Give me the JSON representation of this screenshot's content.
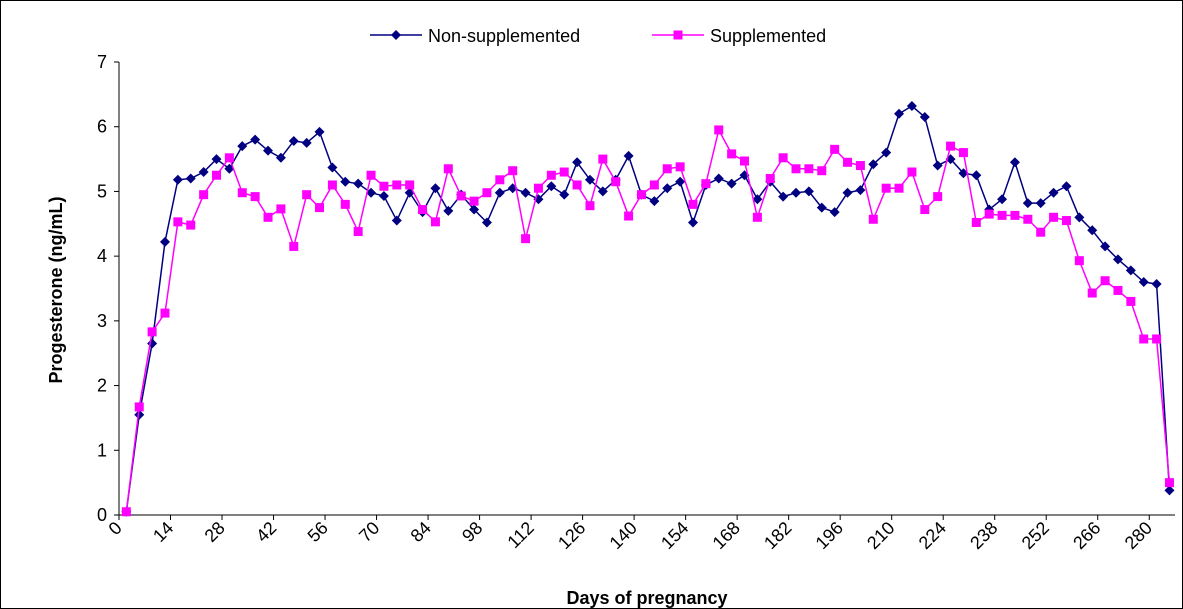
{
  "chart_data": {
    "type": "line",
    "x_label": "Days of pregnancy",
    "y_label": "Progesterone (ng/mL)",
    "x": [
      2,
      5.5,
      9,
      12.5,
      16,
      19.5,
      23,
      26.5,
      30,
      33.5,
      37,
      40.5,
      44,
      47.5,
      51,
      54.5,
      58,
      61.5,
      65,
      68.5,
      72,
      75.5,
      79,
      82.5,
      86,
      89.5,
      93,
      96.5,
      100,
      103.5,
      107,
      110.5,
      114,
      117.5,
      121,
      124.5,
      128,
      131.5,
      135,
      138.5,
      142,
      145.5,
      149,
      152.5,
      156,
      159.5,
      163,
      166.5,
      170,
      173.5,
      177,
      180.5,
      184,
      187.5,
      191,
      194.5,
      198,
      201.5,
      205,
      208.5,
      212,
      215.5,
      219,
      222.5,
      226,
      229.5,
      233,
      236.5,
      240,
      243.5,
      247,
      250.5,
      254,
      257.5,
      261,
      264.5,
      268,
      271.5,
      275,
      278.5,
      282,
      285.5
    ],
    "series": [
      {
        "name": "Non-supplemented",
        "color": "#000080",
        "marker": "diamond",
        "values": [
          0.05,
          1.55,
          2.65,
          4.22,
          5.18,
          5.2,
          5.3,
          5.5,
          5.35,
          5.7,
          5.8,
          5.63,
          5.52,
          5.78,
          5.75,
          5.92,
          5.37,
          5.15,
          5.12,
          4.98,
          4.93,
          4.55,
          4.98,
          4.68,
          5.05,
          4.7,
          4.95,
          4.72,
          4.52,
          4.98,
          5.05,
          4.98,
          4.88,
          5.08,
          4.95,
          5.45,
          5.18,
          5.0,
          5.18,
          5.55,
          4.95,
          4.85,
          5.05,
          5.15,
          4.52,
          5.1,
          5.2,
          5.12,
          5.25,
          4.88,
          5.15,
          4.92,
          4.98,
          5.0,
          4.75,
          4.68,
          4.98,
          5.02,
          5.42,
          5.6,
          6.2,
          6.32,
          6.15,
          5.4,
          5.5,
          5.28,
          5.25,
          4.72,
          4.88,
          5.45,
          4.82,
          4.82,
          4.98,
          5.08,
          4.6,
          4.4,
          4.15,
          3.95,
          3.78,
          3.6,
          3.57,
          0.38
        ]
      },
      {
        "name": "Supplemented",
        "color": "#ff00ff",
        "marker": "square",
        "values": [
          0.05,
          1.67,
          2.83,
          3.12,
          4.53,
          4.48,
          4.95,
          5.25,
          5.52,
          4.98,
          4.92,
          4.6,
          4.73,
          4.15,
          4.95,
          4.75,
          5.1,
          4.8,
          4.38,
          5.25,
          5.08,
          5.1,
          5.1,
          4.72,
          4.53,
          5.35,
          4.93,
          4.85,
          4.98,
          5.18,
          5.32,
          4.27,
          5.05,
          5.25,
          5.3,
          5.1,
          4.78,
          5.5,
          5.15,
          4.62,
          4.95,
          5.1,
          5.35,
          5.38,
          4.8,
          5.12,
          5.95,
          5.58,
          5.47,
          4.6,
          5.2,
          5.52,
          5.35,
          5.35,
          5.32,
          5.65,
          5.45,
          5.4,
          4.57,
          5.05,
          5.05,
          5.3,
          4.72,
          4.92,
          5.7,
          5.6,
          4.52,
          4.65,
          4.63,
          4.63,
          4.57,
          4.37,
          4.6,
          4.55,
          3.93,
          3.43,
          3.62,
          3.47,
          3.3,
          2.72,
          2.72,
          0.5
        ]
      }
    ],
    "xlim": [
      0,
      287
    ],
    "xticks": [
      0,
      14,
      28,
      42,
      56,
      70,
      84,
      98,
      112,
      126,
      140,
      154,
      168,
      182,
      196,
      210,
      224,
      238,
      252,
      266,
      280
    ],
    "ylim": [
      0,
      7
    ],
    "yticks": [
      0,
      1,
      2,
      3,
      4,
      5,
      6,
      7
    ],
    "legend": "top"
  }
}
